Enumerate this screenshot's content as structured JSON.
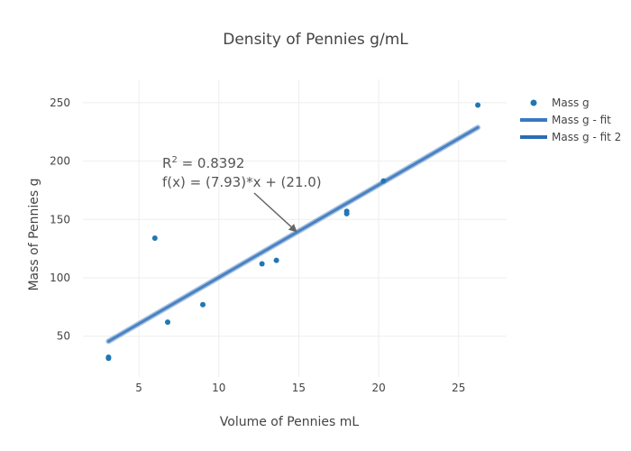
{
  "chart_data": {
    "type": "scatter",
    "title": "Density of Pennies g/mL",
    "xlabel": "Volume of Pennies mL",
    "ylabel": "Mass of Pennies g",
    "xlim": [
      1.5,
      28
    ],
    "ylim": [
      15,
      270
    ],
    "xticks": [
      5,
      10,
      15,
      20,
      25
    ],
    "yticks": [
      50,
      100,
      150,
      200,
      250
    ],
    "grid": true,
    "legend_position": "top-right",
    "colors": {
      "points": "#1f77b4",
      "fit": "#3b78c0",
      "fit2": "#2b6cb5",
      "grid": "#eeeeee",
      "text": "#444444",
      "arrow": "#666666"
    },
    "series": [
      {
        "name": "Mass g",
        "mode": "markers",
        "points": [
          {
            "x": 3.1,
            "y": 31
          },
          {
            "x": 3.1,
            "y": 32
          },
          {
            "x": 6.0,
            "y": 134
          },
          {
            "x": 6.8,
            "y": 62
          },
          {
            "x": 9.0,
            "y": 77
          },
          {
            "x": 12.7,
            "y": 112
          },
          {
            "x": 13.6,
            "y": 115
          },
          {
            "x": 18.0,
            "y": 155
          },
          {
            "x": 18.0,
            "y": 157
          },
          {
            "x": 20.3,
            "y": 183
          },
          {
            "x": 26.2,
            "y": 248
          }
        ]
      },
      {
        "name": "Mass g - fit",
        "mode": "line",
        "points": [
          {
            "x": 3.1,
            "y": 45.6
          },
          {
            "x": 26.2,
            "y": 228.8
          }
        ]
      },
      {
        "name": "Mass g - fit 2",
        "mode": "line",
        "points": [
          {
            "x": 3.1,
            "y": 45.6
          },
          {
            "x": 26.2,
            "y": 228.8
          }
        ]
      }
    ],
    "annotation": {
      "r2_prefix": "R",
      "r2_sup": "2",
      "r2_value": " = 0.8392",
      "equation": "f(x) = (7.93)*x + (21.0)",
      "arrow_point": {
        "x": 14.9,
        "y": 139
      }
    }
  }
}
